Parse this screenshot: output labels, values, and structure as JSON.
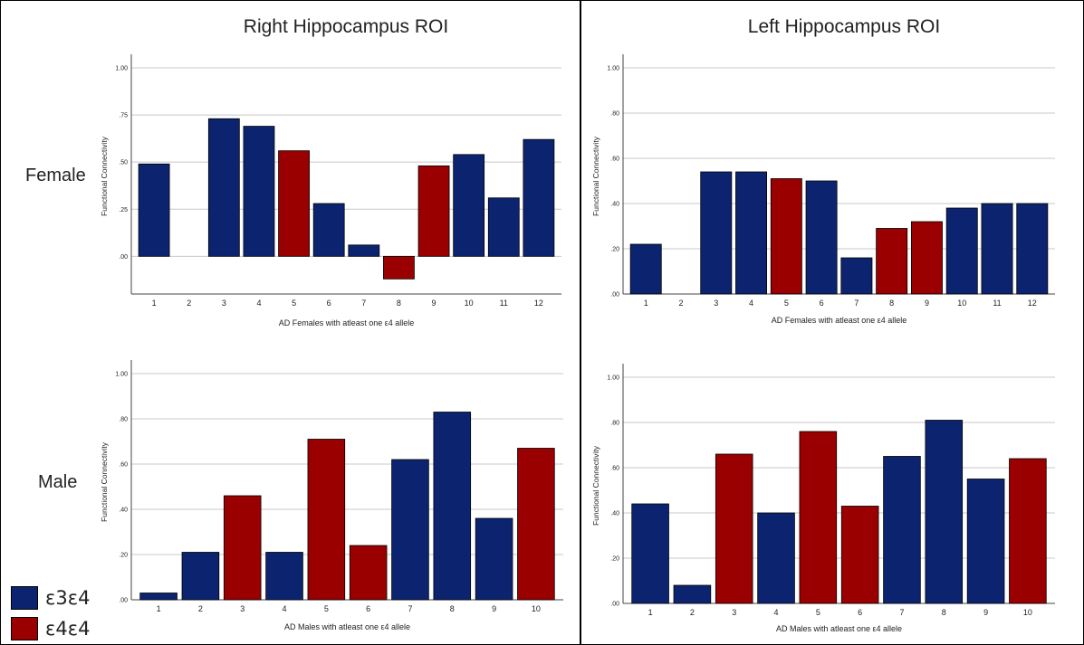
{
  "titles": {
    "right": "Right Hippocampus ROI",
    "left": "Left Hippocampus ROI"
  },
  "rows": {
    "female": "Female",
    "male": "Male"
  },
  "colors": {
    "e3e4": "#0c2470",
    "e4e4": "#9a0000",
    "grid": "#c8c8c8",
    "axis": "#444444"
  },
  "legend": [
    {
      "label": "ε3ε4",
      "color": "#0c2470"
    },
    {
      "label": "ε4ε4",
      "color": "#9a0000"
    }
  ],
  "chart_data": [
    {
      "id": "right-female",
      "type": "bar",
      "title": "",
      "xlabel": "AD Females with atleast one ε4 allele",
      "ylabel": "Functional Connectivity",
      "categories": [
        "1",
        "2",
        "3",
        "4",
        "5",
        "6",
        "7",
        "8",
        "9",
        "10",
        "11",
        "12"
      ],
      "values": [
        0.49,
        null,
        0.73,
        0.69,
        0.56,
        0.28,
        0.06,
        -0.12,
        0.48,
        0.54,
        0.31,
        0.62
      ],
      "genotype": [
        "e3e4",
        null,
        "e3e4",
        "e3e4",
        "e4e4",
        "e3e4",
        "e3e4",
        "e4e4",
        "e4e4",
        "e3e4",
        "e3e4",
        "e3e4"
      ],
      "ylim": [
        -0.2,
        1.0
      ],
      "yticks": [
        0,
        0.25,
        0.5,
        0.75,
        1.0
      ],
      "ytick_labels": [
        ".00",
        ".25",
        ".50",
        ".75",
        "1.00"
      ],
      "grid": true
    },
    {
      "id": "left-female",
      "type": "bar",
      "title": "",
      "xlabel": "AD Females with atleast one ε4 allele",
      "ylabel": "Functional Connectivity",
      "categories": [
        "1",
        "2",
        "3",
        "4",
        "5",
        "6",
        "7",
        "8",
        "9",
        "10",
        "11",
        "12"
      ],
      "values": [
        0.22,
        null,
        0.54,
        0.54,
        0.51,
        0.5,
        0.16,
        0.29,
        0.32,
        0.38,
        0.4,
        0.4
      ],
      "genotype": [
        "e3e4",
        null,
        "e3e4",
        "e3e4",
        "e4e4",
        "e3e4",
        "e3e4",
        "e4e4",
        "e4e4",
        "e3e4",
        "e3e4",
        "e3e4"
      ],
      "ylim": [
        0,
        1.0
      ],
      "yticks": [
        0,
        0.2,
        0.4,
        0.6,
        0.8,
        1.0
      ],
      "ytick_labels": [
        ".00",
        ".20",
        ".40",
        ".60",
        ".80",
        "1.00"
      ],
      "grid": true
    },
    {
      "id": "right-male",
      "type": "bar",
      "title": "",
      "xlabel": "AD Males with atleast one ε4 allele",
      "ylabel": "Functional Connectivity",
      "categories": [
        "1",
        "2",
        "3",
        "4",
        "5",
        "6",
        "7",
        "8",
        "9",
        "10"
      ],
      "values": [
        0.03,
        0.21,
        0.46,
        0.21,
        0.71,
        0.24,
        0.62,
        0.83,
        0.36,
        0.67
      ],
      "genotype": [
        "e3e4",
        "e3e4",
        "e4e4",
        "e3e4",
        "e4e4",
        "e4e4",
        "e3e4",
        "e3e4",
        "e3e4",
        "e4e4"
      ],
      "ylim": [
        0,
        1.0
      ],
      "yticks": [
        0,
        0.2,
        0.4,
        0.6,
        0.8,
        1.0
      ],
      "ytick_labels": [
        ".00",
        ".20",
        ".40",
        ".60",
        ".80",
        "1.00"
      ],
      "grid": true
    },
    {
      "id": "left-male",
      "type": "bar",
      "title": "",
      "xlabel": "AD Males with atleast one ε4 allele",
      "ylabel": "Functional Connectivity",
      "categories": [
        "1",
        "2",
        "3",
        "4",
        "5",
        "6",
        "7",
        "8",
        "9",
        "10"
      ],
      "values": [
        0.44,
        0.08,
        0.66,
        0.4,
        0.76,
        0.43,
        0.65,
        0.81,
        0.55,
        0.64
      ],
      "genotype": [
        "e3e4",
        "e3e4",
        "e4e4",
        "e3e4",
        "e4e4",
        "e4e4",
        "e3e4",
        "e3e4",
        "e3e4",
        "e4e4"
      ],
      "ylim": [
        0,
        1.0
      ],
      "yticks": [
        0,
        0.2,
        0.4,
        0.6,
        0.8,
        1.0
      ],
      "ytick_labels": [
        ".00",
        ".20",
        ".40",
        ".60",
        ".80",
        "1.00"
      ],
      "grid": true
    }
  ]
}
